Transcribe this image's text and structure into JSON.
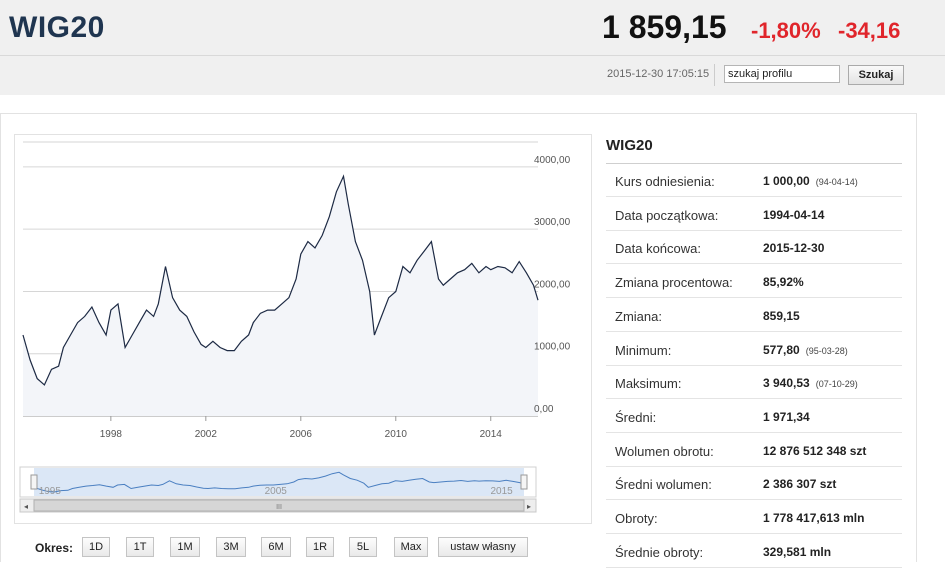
{
  "header": {
    "index_name": "WIG20",
    "price": "1 859,15",
    "change_pct": "-1,80%",
    "change_abs": "-34,16",
    "timestamp": "2015-12-30 17:05:15",
    "search_value": "szukaj profilu",
    "search_button": "Szukaj"
  },
  "colors": {
    "negative": "#e0252b",
    "title": "#1f3550",
    "line": "#1d2a44",
    "navigator": "#4a7fc1"
  },
  "chart_data": {
    "type": "line",
    "title": "",
    "xlabel": "",
    "ylabel": "",
    "x_ticks": [
      "1998",
      "2002",
      "2006",
      "2010",
      "2014"
    ],
    "y_ticks": [
      "4000,00",
      "3000,00",
      "2000,00",
      "1000,00",
      "0,00"
    ],
    "ylim": [
      0,
      4400
    ],
    "xlim": [
      1994.3,
      2015.99
    ],
    "grid": true,
    "series": [
      {
        "x": [
          1994.3,
          1994.6,
          1994.9,
          1995.2,
          1995.5,
          1995.8,
          1996.0,
          1996.3,
          1996.6,
          1996.9,
          1997.2,
          1997.5,
          1997.8,
          1998.0,
          1998.3,
          1998.6,
          1998.9,
          1999.2,
          1999.5,
          1999.8,
          2000.0,
          2000.3,
          2000.6,
          2000.9,
          2001.2,
          2001.5,
          2001.8,
          2002.0,
          2002.3,
          2002.6,
          2002.9,
          2003.2,
          2003.5,
          2003.8,
          2004.0,
          2004.3,
          2004.6,
          2004.9,
          2005.2,
          2005.5,
          2005.8,
          2006.0,
          2006.3,
          2006.6,
          2006.9,
          2007.2,
          2007.5,
          2007.8,
          2008.0,
          2008.3,
          2008.6,
          2008.9,
          2009.1,
          2009.4,
          2009.7,
          2010.0,
          2010.3,
          2010.6,
          2010.9,
          2011.2,
          2011.5,
          2011.8,
          2012.0,
          2012.3,
          2012.6,
          2012.9,
          2013.2,
          2013.5,
          2013.8,
          2014.0,
          2014.3,
          2014.6,
          2014.9,
          2015.2,
          2015.5,
          2015.8,
          2015.99
        ],
        "y": [
          1300,
          900,
          600,
          500,
          750,
          800,
          1100,
          1300,
          1500,
          1600,
          1750,
          1500,
          1300,
          1700,
          1800,
          1100,
          1300,
          1500,
          1700,
          1600,
          1800,
          2400,
          1900,
          1700,
          1600,
          1350,
          1150,
          1100,
          1200,
          1100,
          1050,
          1050,
          1200,
          1300,
          1500,
          1650,
          1700,
          1700,
          1800,
          1900,
          2200,
          2600,
          2800,
          2700,
          2900,
          3200,
          3600,
          3850,
          3400,
          2800,
          2500,
          2000,
          1300,
          1600,
          1900,
          2000,
          2400,
          2300,
          2500,
          2650,
          2800,
          2200,
          2100,
          2200,
          2300,
          2350,
          2450,
          2300,
          2400,
          2350,
          2400,
          2380,
          2300,
          2480,
          2300,
          2100,
          1859.15
        ]
      }
    ],
    "navigator": {
      "labels": [
        "1995",
        "2005",
        "2015"
      ]
    },
    "ui": {
      "scroll_mid": "III",
      "left_arrow": "◂",
      "right_arrow": "▸"
    }
  },
  "period": {
    "label": "Okres:",
    "buttons": [
      "1D",
      "1T",
      "1M",
      "3M",
      "6M",
      "1R",
      "5L",
      "Max",
      "ustaw własny"
    ]
  },
  "info": {
    "title": "WIG20",
    "rows": [
      {
        "label": "Kurs odniesienia:",
        "value": "1 000,00",
        "date": "(94-04-14)"
      },
      {
        "label": "Data początkowa:",
        "value": "1994-04-14",
        "date": ""
      },
      {
        "label": "Data końcowa:",
        "value": "2015-12-30",
        "date": ""
      },
      {
        "label": "Zmiana procentowa:",
        "value": "85,92%",
        "date": ""
      },
      {
        "label": "Zmiana:",
        "value": "859,15",
        "date": ""
      },
      {
        "label": "Minimum:",
        "value": "577,80",
        "date": "(95-03-28)"
      },
      {
        "label": "Maksimum:",
        "value": "3 940,53",
        "date": "(07-10-29)"
      },
      {
        "label": "Średni:",
        "value": "1 971,34",
        "date": ""
      },
      {
        "label": "Wolumen obrotu:",
        "value": "12 876 512 348 szt",
        "date": ""
      },
      {
        "label": "Średni wolumen:",
        "value": "2 386 307 szt",
        "date": ""
      },
      {
        "label": "Obroty:",
        "value": "1 778 417,613 mln",
        "date": ""
      },
      {
        "label": "Średnie obroty:",
        "value": "329,581 mln",
        "date": ""
      }
    ]
  }
}
